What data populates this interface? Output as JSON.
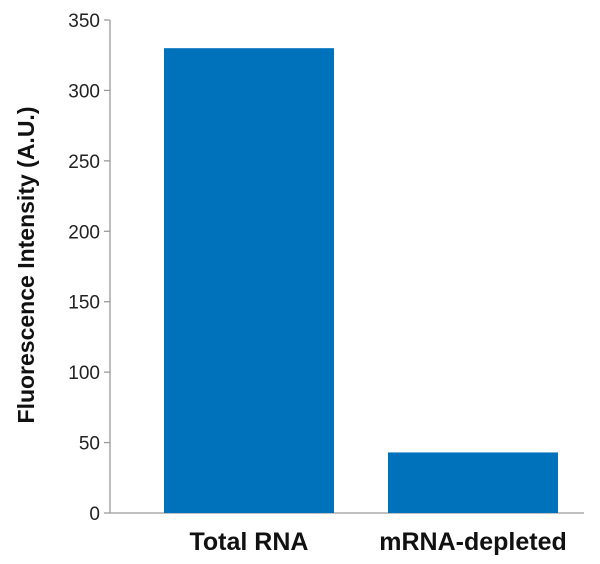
{
  "chart_data": {
    "type": "bar",
    "categories": [
      "Total RNA",
      "mRNA-depleted"
    ],
    "values": [
      330,
      43
    ],
    "ylabel": "Fluorescence Intensity (A.U.)",
    "ylim": [
      0,
      350
    ],
    "yticks": [
      0,
      50,
      100,
      150,
      200,
      250,
      300,
      350
    ],
    "grid": false,
    "bar_color": "#0072BC"
  }
}
